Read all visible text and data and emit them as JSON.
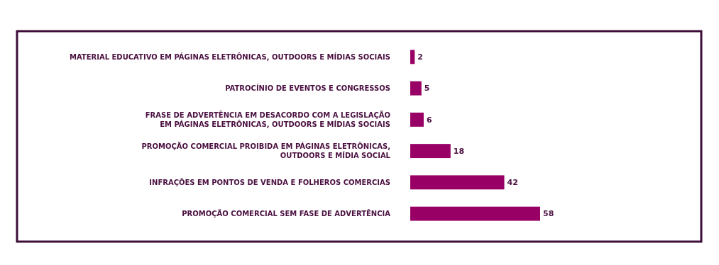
{
  "chart_data": {
    "type": "bar",
    "orientation": "horizontal",
    "categories": [
      "MATERIAL EDUCATIVO EM PÁGINAS ELETRÔNICAS, OUTDOORS E MÍDIAS SOCIAIS",
      "PATROCÍNIO DE EVENTOS E CONGRESSOS",
      "FRASE DE ADVERTÊNCIA EM DESACORDO COM A LEGISLAÇÃO\nEM PÁGINAS ELETRÔNICAS, OUTDOORS E MÍDIAS SOCIAIS",
      "PROMOÇÃO COMERCIAL PROIBIDA EM PÁGINAS ELETRÔNICAS,\nOUTDOORS E MÍDIA SOCIAL",
      "INFRAÇÕES EM PONTOS DE VENDA E FOLHEROS COMERCIAS",
      "PROMOÇÃO COMERCIAL SEM FASE DE ADVERTÊNCIA"
    ],
    "values": [
      2,
      5,
      6,
      18,
      42,
      58
    ],
    "color": "#990066",
    "data_labels": true
  }
}
